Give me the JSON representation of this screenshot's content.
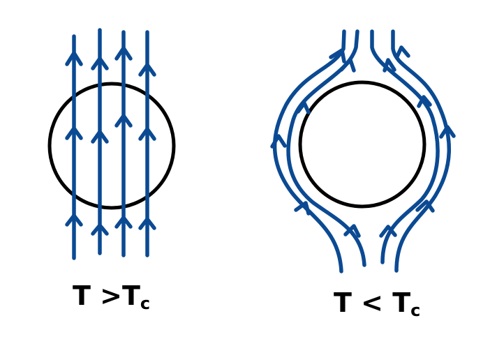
{
  "panels": [
    {
      "id": "normal-state",
      "label_main": "T >T",
      "label_sub": "c",
      "line_color": "#0b4a93"
    },
    {
      "id": "superconducting-state",
      "label_main": "T < T",
      "label_sub": "c",
      "line_color": "#0b4a93"
    }
  ],
  "colors": {
    "circle": "#000000",
    "field_lines": "#0b4a93",
    "background": "#ffffff"
  }
}
